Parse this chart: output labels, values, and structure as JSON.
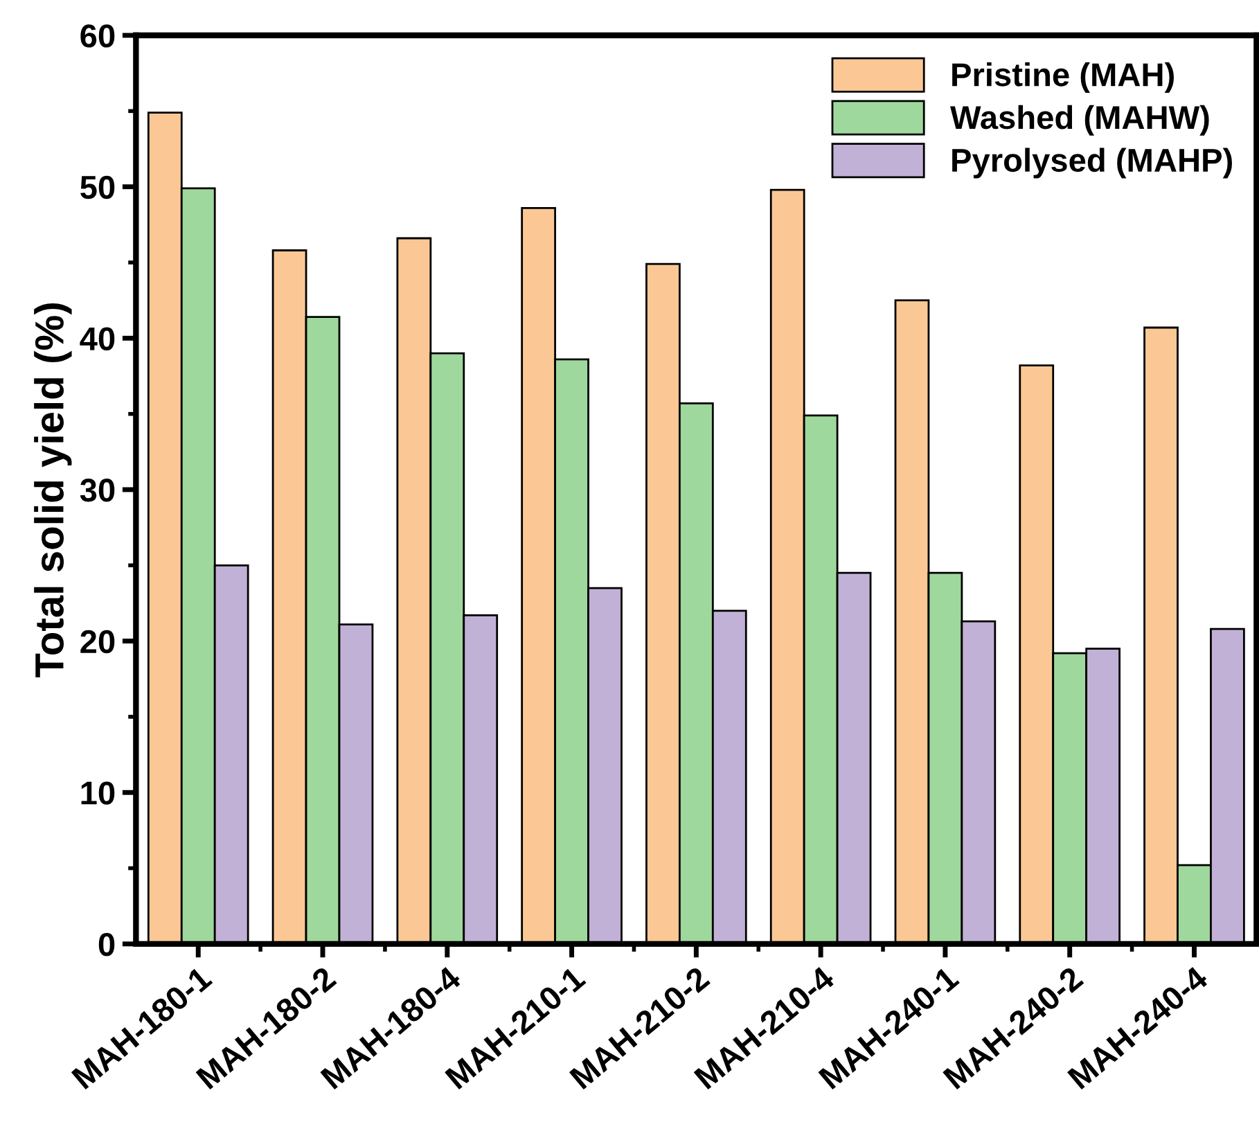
{
  "chart_data": {
    "type": "bar",
    "ylabel": "Total solid yield (%)",
    "categories": [
      "MAH-180-1",
      "MAH-180-2",
      "MAH-180-4",
      "MAH-210-1",
      "MAH-210-2",
      "MAH-210-4",
      "MAH-240-1",
      "MAH-240-2",
      "MAH-240-4"
    ],
    "series": [
      {
        "name": "Pristine (MAH)",
        "color": "#fbc895",
        "values": [
          54.9,
          45.8,
          46.6,
          48.6,
          44.9,
          49.8,
          42.5,
          38.2,
          40.7
        ]
      },
      {
        "name": "Washed (MAHW)",
        "color": "#9fd89c",
        "values": [
          49.9,
          41.4,
          39.0,
          38.6,
          35.7,
          34.9,
          24.5,
          19.2,
          5.2
        ]
      },
      {
        "name": "Pyrolysed (MAHP)",
        "color": "#c2b1d6",
        "values": [
          25.0,
          21.1,
          21.7,
          23.5,
          22.0,
          24.5,
          21.3,
          19.5,
          20.8
        ]
      }
    ],
    "ylim": [
      0,
      60
    ],
    "yticks": [
      0,
      10,
      20,
      30,
      40,
      50,
      60
    ],
    "grid": false,
    "legend": "top right"
  }
}
